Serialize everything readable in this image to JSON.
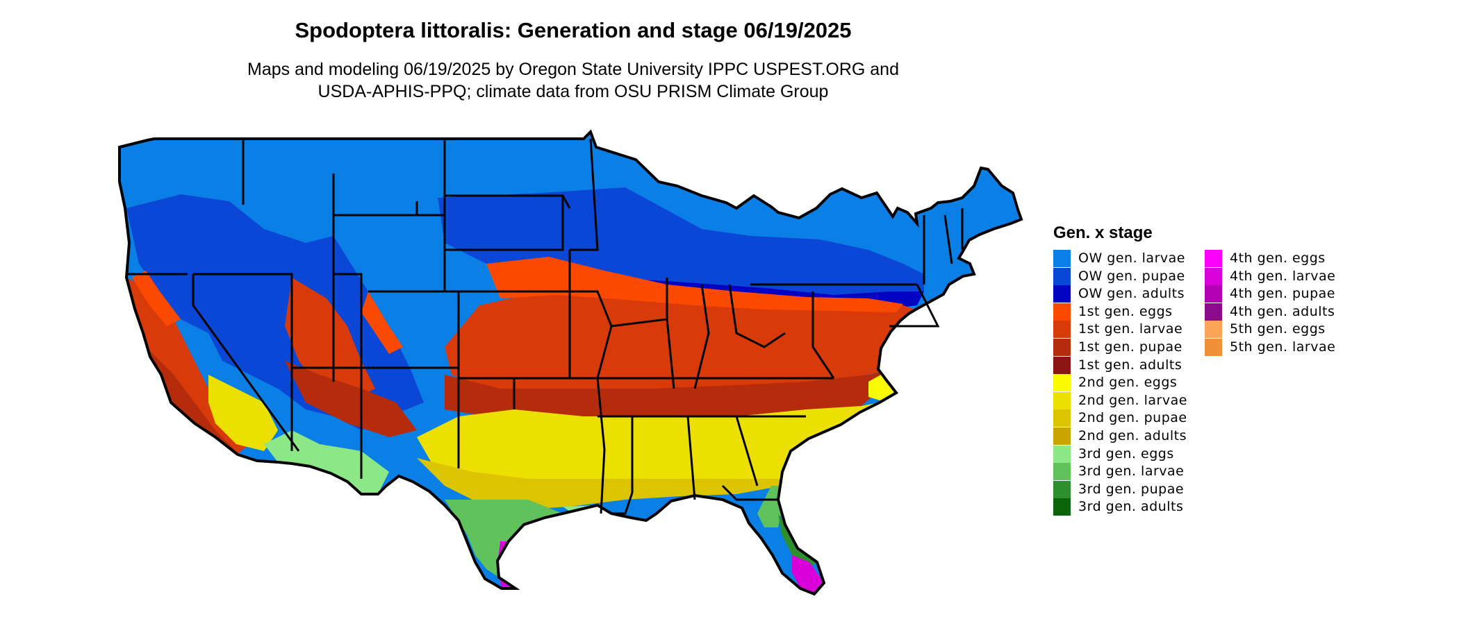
{
  "header": {
    "title": "Spodoptera littoralis: Generation and stage 06/19/2025",
    "subtitle_line1": "Maps and modeling 06/19/2025 by Oregon State University IPPC USPEST.ORG and",
    "subtitle_line2": "USDA-APHIS-PPQ; climate data from OSU PRISM Climate Group"
  },
  "legend": {
    "title": "Gen. x stage",
    "items": [
      {
        "label": "OW gen. larvae",
        "color": "#0a7fe6"
      },
      {
        "label": "OW gen. pupae",
        "color": "#0a47d6"
      },
      {
        "label": "OW gen. adults",
        "color": "#0303c4"
      },
      {
        "label": "1st gen. eggs",
        "color": "#fb4a00"
      },
      {
        "label": "1st gen. larvae",
        "color": "#d93a0a"
      },
      {
        "label": "1st gen. pupae",
        "color": "#b52c0c"
      },
      {
        "label": "1st gen. adults",
        "color": "#8b1515"
      },
      {
        "label": "2nd gen. eggs",
        "color": "#fbfb00"
      },
      {
        "label": "2nd gen. larvae",
        "color": "#ebe000"
      },
      {
        "label": "2nd gen. pupae",
        "color": "#dcc400"
      },
      {
        "label": "2nd gen. adults",
        "color": "#c9a500"
      },
      {
        "label": "3rd gen. eggs",
        "color": "#8ce886"
      },
      {
        "label": "3rd gen. larvae",
        "color": "#5fc25a"
      },
      {
        "label": "3rd gen. pupae",
        "color": "#2e8f2e"
      },
      {
        "label": "3rd gen. adults",
        "color": "#0a650a"
      },
      {
        "label": "4th gen. eggs",
        "color": "#fb00fb"
      },
      {
        "label": "4th gen. larvae",
        "color": "#d900d9"
      },
      {
        "label": "4th gen. pupae",
        "color": "#b400b4"
      },
      {
        "label": "4th gen. adults",
        "color": "#8c0c8c"
      },
      {
        "label": "5th gen. eggs",
        "color": "#fca558"
      },
      {
        "label": "5th gen. larvae",
        "color": "#f09038"
      }
    ]
  }
}
